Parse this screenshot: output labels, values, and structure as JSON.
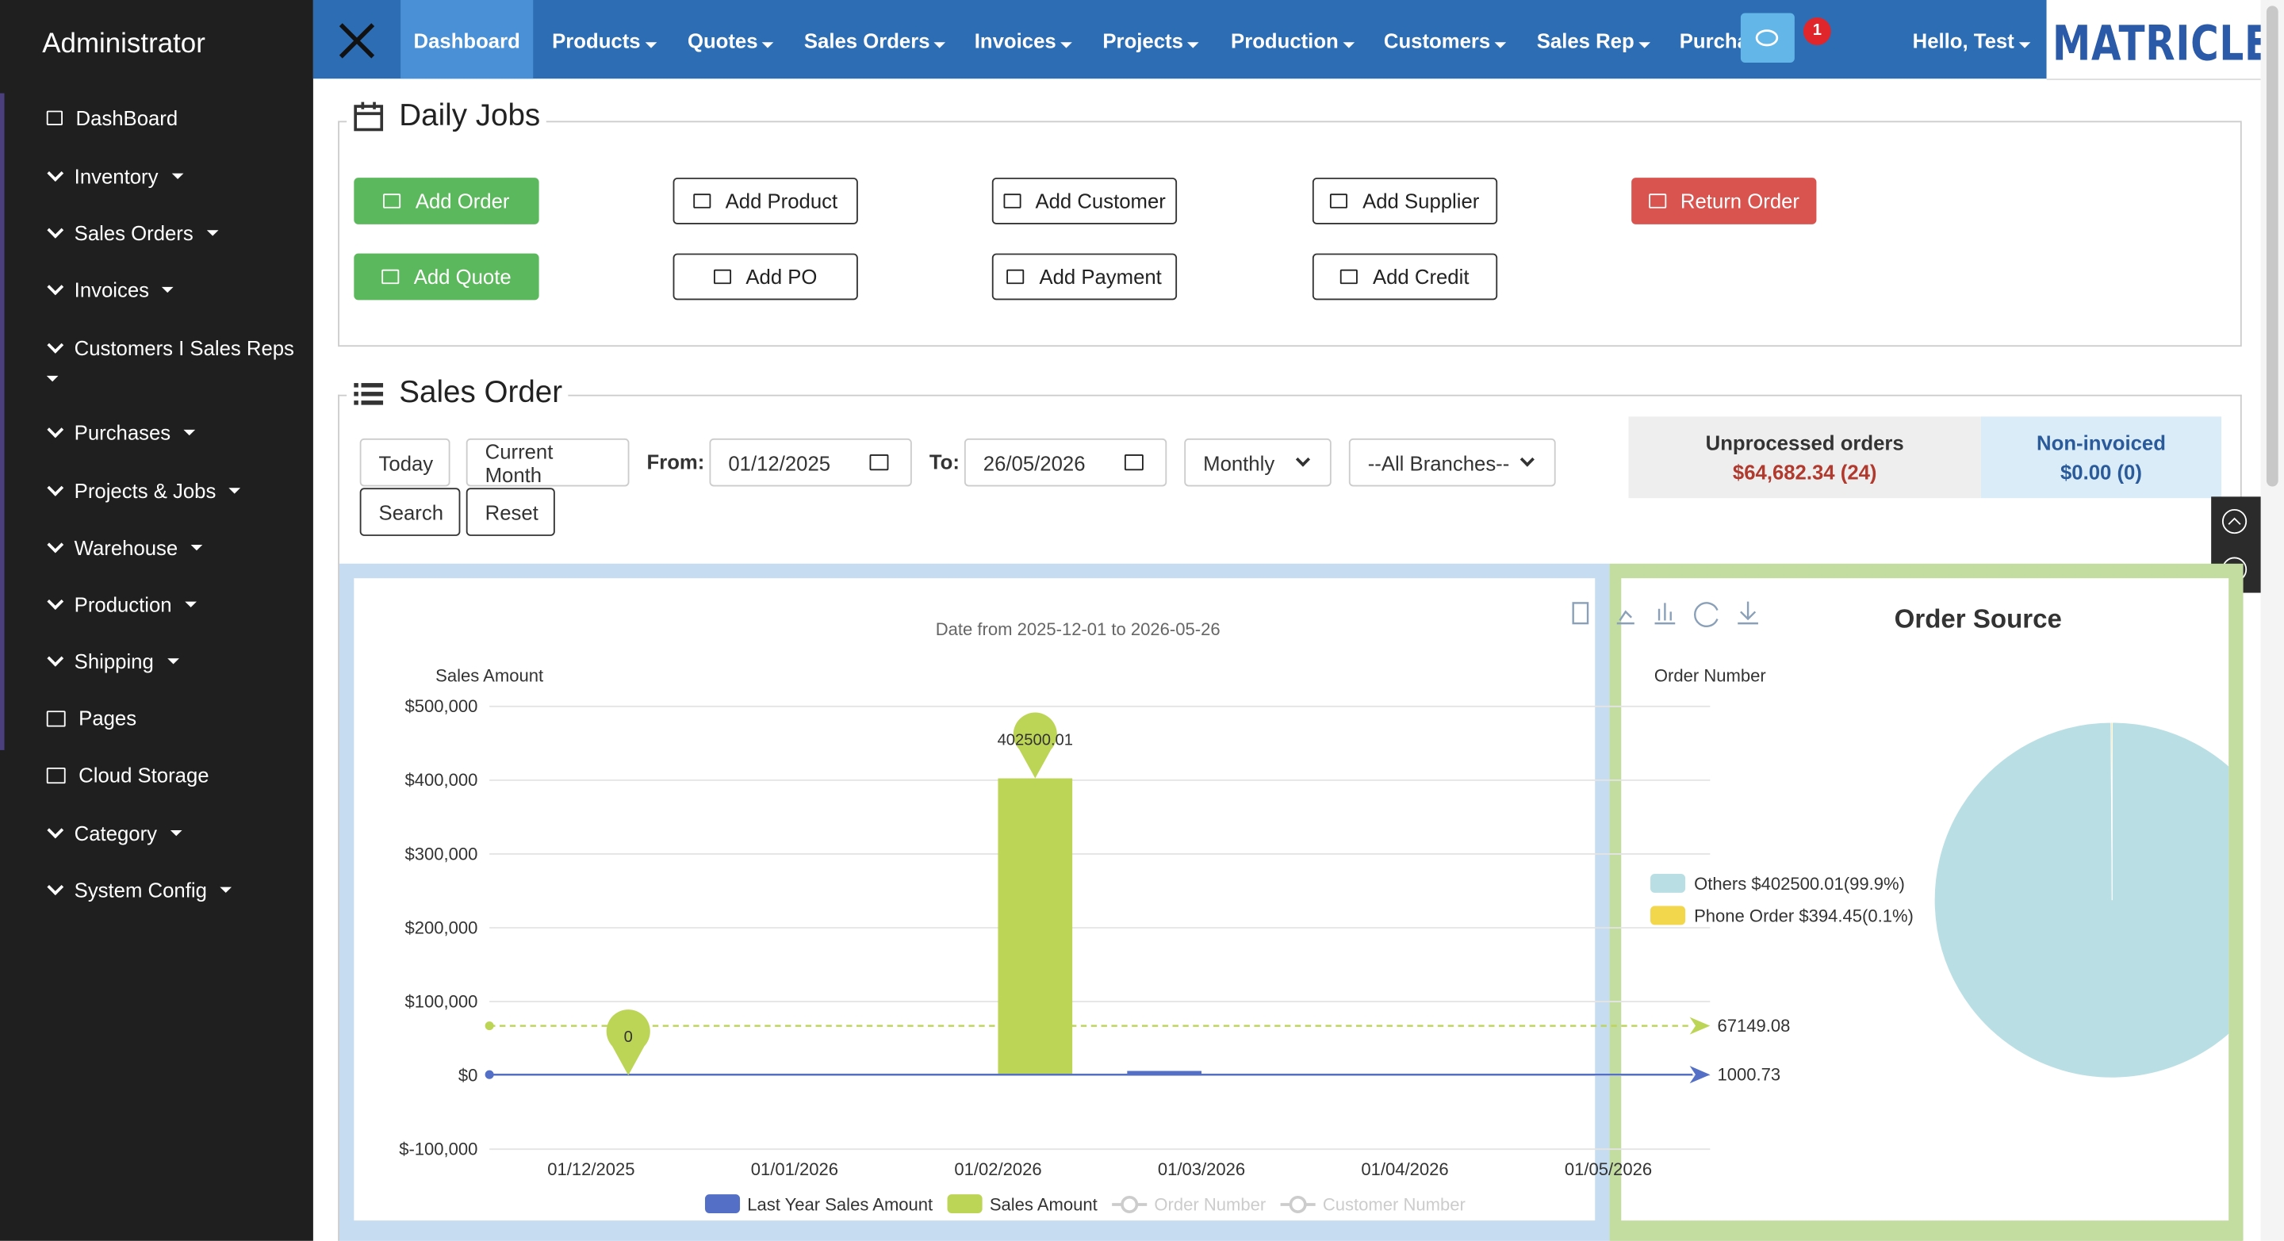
{
  "sidebar": {
    "title": "Administrator",
    "items": [
      "DashBoard",
      "Inventory",
      "Sales Orders",
      "Invoices",
      "Customers I Sales Reps",
      "Purchases",
      "Projects & Jobs",
      "Warehouse",
      "Production",
      "Shipping",
      "Pages",
      "Cloud Storage",
      "Category",
      "System Config"
    ]
  },
  "nav": {
    "items": [
      "Dashboard",
      "Products",
      "Quotes",
      "Sales Orders",
      "Invoices",
      "Projects",
      "Production",
      "Customers",
      "Sales Rep",
      "Purchases"
    ],
    "badge": "1",
    "greeting": "Hello, Test",
    "logo": "MATRICLE"
  },
  "daily_jobs": {
    "title": "Daily Jobs",
    "buttons": [
      "Add Order",
      "Add Product",
      "Add Customer",
      "Add Supplier",
      "Return Order",
      "Add Quote",
      "Add PO",
      "Add Payment",
      "Add Credit"
    ]
  },
  "sales_order": {
    "title": "Sales Order",
    "quick": [
      "Today",
      "Current Month"
    ],
    "from_label": "From:",
    "from": "01/12/2025",
    "to_label": "To:",
    "to": "26/05/2026",
    "period": "Monthly",
    "branch": "--All Branches--",
    "search": "Search",
    "reset": "Reset",
    "stats": [
      {
        "label": "Unprocessed orders",
        "value": "$64,682.34 (24)"
      },
      {
        "label": "Non-invoiced",
        "value": "$0.00 (0)"
      }
    ]
  },
  "chart_data": [
    {
      "type": "bar",
      "subtitle": "Date from 2025-12-01 to 2026-05-26",
      "y_label": "Sales Amount",
      "y2_label": "Order Number",
      "categories": [
        "01/12/2025",
        "01/01/2026",
        "01/02/2026",
        "01/03/2026",
        "01/04/2026",
        "01/05/2026"
      ],
      "series": [
        {
          "name": "Last Year Sales Amount",
          "color": "#5470c6",
          "values": [
            0,
            0,
            0,
            6004.38,
            0,
            0
          ],
          "mark_line": 1000.73
        },
        {
          "name": "Sales Amount",
          "color": "#bdd556",
          "values": [
            0,
            0,
            402500.01,
            0,
            0,
            394.45
          ],
          "mark_line": 67149.08
        }
      ],
      "legend_inactive": [
        "Order Number",
        "Customer Number"
      ],
      "ylim": [
        -100000,
        500000
      ],
      "yticks": [
        {
          "value": -100000,
          "label": "$-100,000"
        },
        {
          "value": 0,
          "label": "$0"
        },
        {
          "value": 100000,
          "label": "$100,000"
        },
        {
          "value": 200000,
          "label": "$200,000"
        },
        {
          "value": 300000,
          "label": "$300,000"
        },
        {
          "value": 400000,
          "label": "$400,000"
        },
        {
          "value": 500000,
          "label": "$500,000"
        }
      ],
      "grid": true
    },
    {
      "type": "pie",
      "title": "Order Source",
      "categories": [
        "Others $402500.01(99.9%)",
        "Phone Order $394.45(0.1%)"
      ],
      "values": [
        99.9,
        0.1
      ],
      "colors": [
        "#b9dfe5",
        "#f2d64b"
      ]
    }
  ]
}
